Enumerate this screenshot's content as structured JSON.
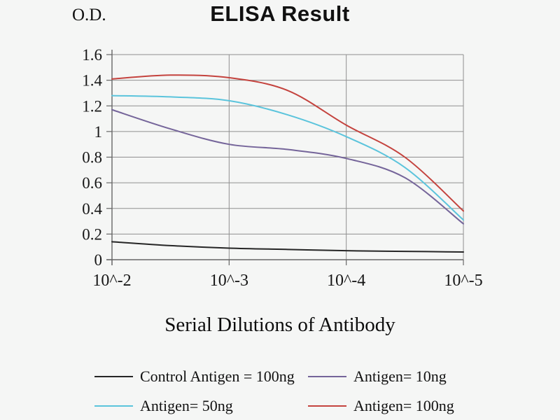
{
  "chart_data": {
    "type": "line",
    "title": "ELISA Result",
    "ylabel": "O.D.",
    "xlabel": "Serial Dilutions of Antibody",
    "x_tick_labels": [
      "10^-2",
      "10^-3",
      "10^-4",
      "10^-5"
    ],
    "y_tick_labels": [
      "0",
      "0.2",
      "0.4",
      "0.6",
      "0.8",
      "1",
      "1.2",
      "1.4",
      "1.6"
    ],
    "ylim": [
      0,
      1.6
    ],
    "y_step": 0.2,
    "grid": true,
    "legend_position": "bottom",
    "colors": {
      "grid": "#8f8f8f",
      "axis": "#666666",
      "text": "#161616"
    },
    "series": [
      {
        "name": "Control Antigen = 100ng",
        "color": "#262626",
        "x": [
          0,
          0.5,
          1,
          1.5,
          2,
          2.5,
          3
        ],
        "values": [
          0.14,
          0.11,
          0.09,
          0.08,
          0.07,
          0.065,
          0.06
        ]
      },
      {
        "name": "Antigen= 10ng",
        "color": "#75659A",
        "x": [
          0,
          0.5,
          1,
          1.5,
          2,
          2.5,
          3
        ],
        "values": [
          1.17,
          1.02,
          0.9,
          0.86,
          0.79,
          0.64,
          0.28
        ]
      },
      {
        "name": "Antigen= 50ng",
        "color": "#5BC4DC",
        "x": [
          0,
          0.5,
          1,
          1.5,
          2,
          2.5,
          3
        ],
        "values": [
          1.28,
          1.27,
          1.24,
          1.13,
          0.96,
          0.72,
          0.31
        ]
      },
      {
        "name": "Antigen= 100ng",
        "color": "#C4433E",
        "x": [
          0,
          0.5,
          1,
          1.5,
          2,
          2.5,
          3
        ],
        "values": [
          1.41,
          1.44,
          1.42,
          1.32,
          1.05,
          0.8,
          0.38
        ]
      }
    ]
  }
}
